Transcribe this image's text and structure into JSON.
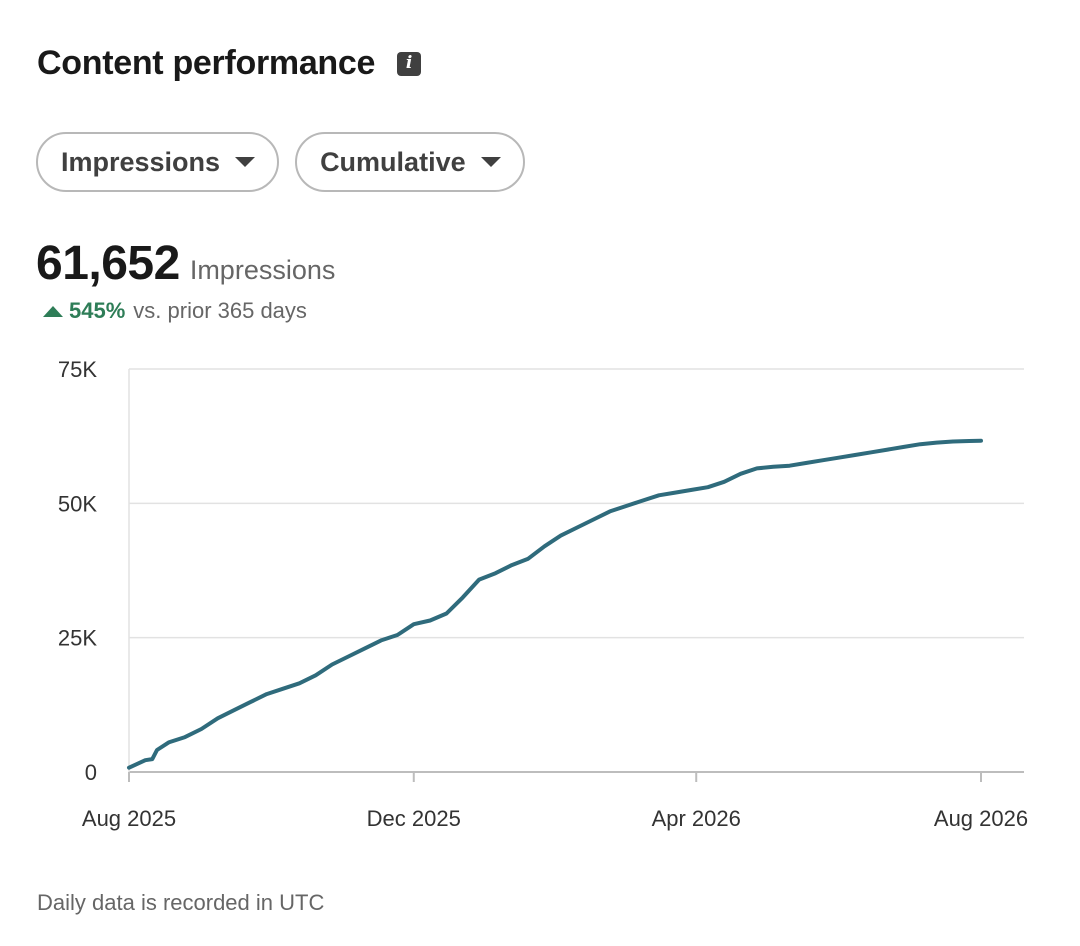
{
  "header": {
    "title": "Content performance",
    "info_icon": "info-icon"
  },
  "filters": {
    "metric_label": "Impressions",
    "mode_label": "Cumulative"
  },
  "summary": {
    "value": "61,652",
    "unit": "Impressions",
    "change_pct": "545%",
    "change_text": "vs. prior 365 days",
    "change_direction": "up",
    "change_color": "#2e7d57"
  },
  "footer": {
    "note": "Daily data is recorded in UTC"
  },
  "chart_data": {
    "type": "line",
    "title": "",
    "xlabel": "",
    "ylabel": "",
    "line_color": "#2f6b7c",
    "grid": true,
    "legend": "none",
    "ylim": [
      0,
      75000
    ],
    "yticks": [
      0,
      25000,
      50000,
      75000
    ],
    "ytick_labels": [
      "0",
      "25K",
      "50K",
      "75K"
    ],
    "xlim": [
      "2025-08-01",
      "2026-08-01"
    ],
    "xticks": [
      "2025-08-01",
      "2025-12-01",
      "2026-04-01",
      "2026-08-01"
    ],
    "xtick_labels": [
      "Aug 2025",
      "Dec 2025",
      "Apr 2026",
      "Aug 2026"
    ],
    "series": [
      {
        "x": [
          "2025-08-01",
          "2025-08-08",
          "2025-08-11",
          "2025-08-13",
          "2025-08-18",
          "2025-08-25",
          "2025-09-01",
          "2025-09-08",
          "2025-09-15",
          "2025-09-22",
          "2025-09-29",
          "2025-10-06",
          "2025-10-13",
          "2025-10-20",
          "2025-10-27",
          "2025-11-03",
          "2025-11-10",
          "2025-11-17",
          "2025-11-24",
          "2025-12-01",
          "2025-12-08",
          "2025-12-15",
          "2025-12-22",
          "2025-12-29",
          "2026-01-05",
          "2026-01-12",
          "2026-01-19",
          "2026-01-26",
          "2026-02-02",
          "2026-02-09",
          "2026-02-16",
          "2026-02-23",
          "2026-03-02",
          "2026-03-09",
          "2026-03-16",
          "2026-03-23",
          "2026-03-30",
          "2026-04-06",
          "2026-04-13",
          "2026-04-20",
          "2026-04-27",
          "2026-05-04",
          "2026-05-11",
          "2026-05-18",
          "2026-05-25",
          "2026-06-01",
          "2026-06-08",
          "2026-06-15",
          "2026-06-22",
          "2026-06-29",
          "2026-07-06",
          "2026-07-13",
          "2026-07-20",
          "2026-07-27",
          "2026-08-01"
        ],
        "y": [
          800,
          2200,
          2400,
          4100,
          5500,
          6500,
          8000,
          10000,
          11500,
          13000,
          14500,
          15500,
          16500,
          18000,
          20000,
          21500,
          23000,
          24500,
          25500,
          27500,
          28200,
          29500,
          32500,
          35800,
          37000,
          38500,
          39700,
          42000,
          44000,
          45500,
          47000,
          48500,
          49500,
          50500,
          51500,
          52000,
          52500,
          53000,
          54000,
          55500,
          56500,
          56800,
          57000,
          57500,
          58000,
          58500,
          59000,
          59500,
          60000,
          60500,
          61000,
          61300,
          61500,
          61600,
          61652
        ]
      }
    ]
  }
}
